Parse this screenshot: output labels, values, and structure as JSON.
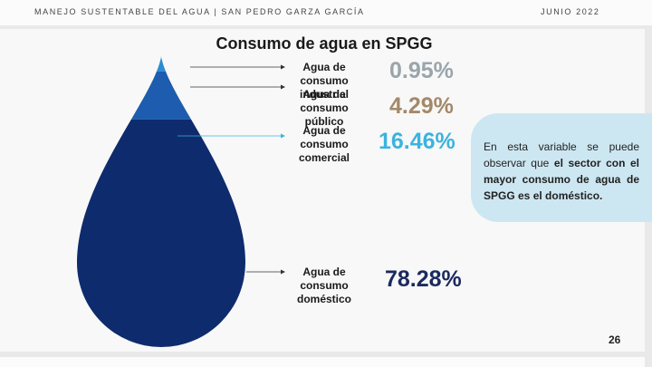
{
  "header": {
    "left": "MANEJO SUSTENTABLE DEL AGUA | SAN PEDRO GARZA GARCÍA",
    "right": "JUNIO 2022"
  },
  "chart_data": {
    "type": "drop",
    "title": "Consumo de agua en SPGG",
    "categories": [
      "Agua de consumo industrial",
      "Agua de consumo público",
      "Agua de consumo comercial",
      "Agua de consumo doméstico"
    ],
    "values": [
      0.95,
      4.29,
      16.46,
      78.28
    ],
    "value_labels": [
      "0.95%",
      "4.29%",
      "16.46%",
      "78.28%"
    ],
    "colors": [
      "#5fbbe9",
      "#2d8bd4",
      "#1d5cae",
      "#0e2b6d"
    ],
    "label_colors": [
      "#9aa5ab",
      "#a3896a",
      "#3bb3e0",
      "#1b2a5e"
    ]
  },
  "note": {
    "text": "En esta variable se puede observar que",
    "bold": "el sector con el mayor consumo de agua de SPGG es el doméstico."
  },
  "page_number": "26"
}
